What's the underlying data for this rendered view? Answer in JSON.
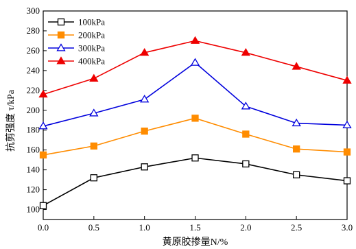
{
  "chart_data": {
    "type": "line",
    "xlabel": "黄原胶掺量N/%",
    "ylabel": "抗剪强度 τ/kPa",
    "xlim": [
      0,
      3
    ],
    "ylim": [
      90,
      300
    ],
    "x_ticks": [
      "0.0",
      "0.5",
      "1.0",
      "1.5",
      "2.0",
      "2.5",
      "3.0"
    ],
    "x_tick_values": [
      0,
      0.5,
      1.0,
      1.5,
      2.0,
      2.5,
      3.0
    ],
    "y_ticks": [
      "100",
      "120",
      "140",
      "160",
      "180",
      "200",
      "220",
      "240",
      "260",
      "280",
      "300"
    ],
    "y_tick_values": [
      100,
      120,
      140,
      160,
      180,
      200,
      220,
      240,
      260,
      280,
      300
    ],
    "x": [
      0,
      0.5,
      1.0,
      1.5,
      2.0,
      2.5,
      3.0
    ],
    "grid": false,
    "legend_position": "top-left",
    "series": [
      {
        "name": "100kPa",
        "color": "#000000",
        "marker": "square-open",
        "values": [
          104,
          132,
          143,
          152,
          146,
          135,
          129
        ]
      },
      {
        "name": "200kPa",
        "color": "#ff8c00",
        "marker": "square-filled",
        "values": [
          155,
          164,
          179,
          192,
          176,
          161,
          158
        ]
      },
      {
        "name": "300kPa",
        "color": "#0000dd",
        "marker": "triangle-open",
        "values": [
          184,
          197,
          211,
          248,
          204,
          187,
          185
        ]
      },
      {
        "name": "400kPa",
        "color": "#ee0000",
        "marker": "triangle-filled",
        "values": [
          216,
          232,
          258,
          270,
          258,
          244,
          230
        ]
      }
    ]
  }
}
